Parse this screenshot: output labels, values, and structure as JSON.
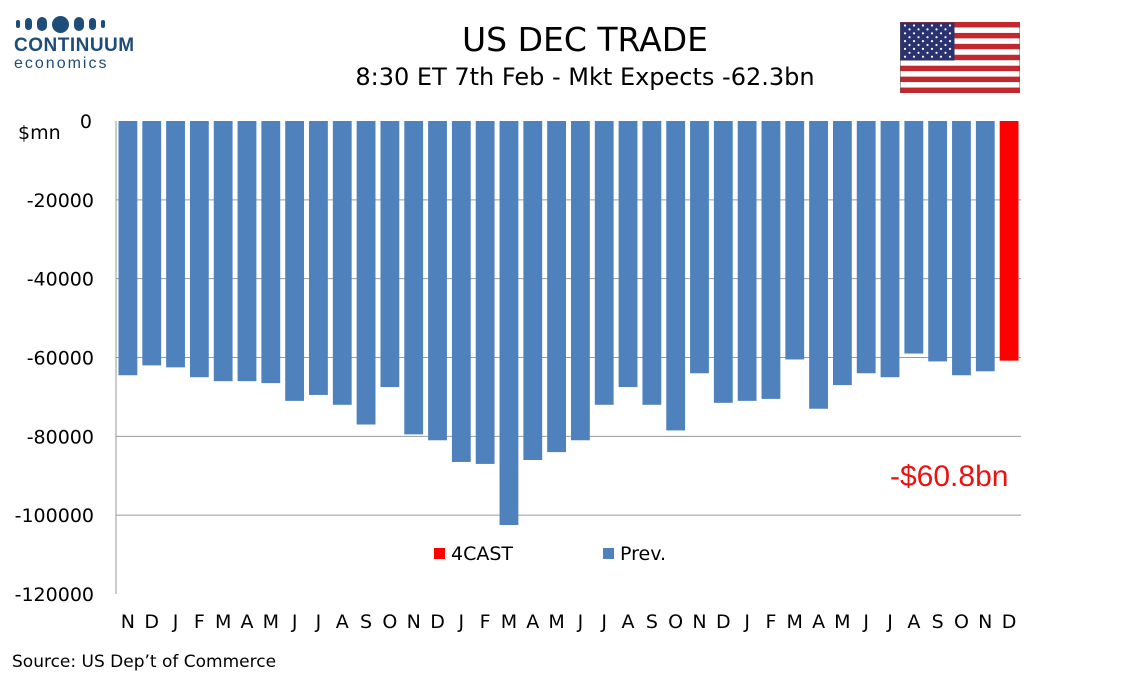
{
  "brand": {
    "name": "CONTINUUM",
    "sub": "economics"
  },
  "header": {
    "title": "US DEC TRADE",
    "subtitle": "8:30 ET 7th Feb - Mkt Expects -62.3bn"
  },
  "flag": "us-flag",
  "source": "Source: US Dep’t of Commerce",
  "callout": "-$60.8bn",
  "colors": {
    "prev": "#4f81bd",
    "forecast": "#ff0000",
    "callout": "#ee1111",
    "brand": "#1f4d7a"
  },
  "chart_data": {
    "type": "bar",
    "title": "US DEC TRADE",
    "subtitle": "8:30 ET 7th Feb - Mkt Expects -62.3bn",
    "ylabel": "$mn",
    "ylim": [
      -120000,
      0
    ],
    "yticks": [
      0,
      -20000,
      -40000,
      -60000,
      -80000,
      -100000,
      -120000
    ],
    "grid": true,
    "legend_position": "bottom-center",
    "categories": [
      "N",
      "D",
      "J",
      "F",
      "M",
      "A",
      "M",
      "J",
      "J",
      "A",
      "S",
      "O",
      "N",
      "D",
      "J",
      "F",
      "M",
      "A",
      "M",
      "J",
      "J",
      "A",
      "S",
      "O",
      "N",
      "D",
      "J",
      "F",
      "M",
      "A",
      "M",
      "J",
      "J",
      "A",
      "S",
      "O",
      "N",
      "D"
    ],
    "series": [
      {
        "name": "Prev.",
        "values": [
          -64500,
          -62000,
          -62500,
          -65000,
          -66000,
          -66000,
          -66500,
          -71000,
          -69500,
          -72000,
          -77000,
          -67500,
          -79500,
          -81000,
          -86500,
          -87000,
          -102500,
          -86000,
          -84000,
          -81000,
          -72000,
          -67500,
          -72000,
          -78500,
          -64000,
          -71500,
          -71000,
          -70500,
          -60500,
          -73000,
          -67000,
          -64000,
          -65000,
          -59000,
          -61000,
          -64500,
          -63500,
          null
        ]
      },
      {
        "name": "4CAST",
        "values": [
          null,
          null,
          null,
          null,
          null,
          null,
          null,
          null,
          null,
          null,
          null,
          null,
          null,
          null,
          null,
          null,
          null,
          null,
          null,
          null,
          null,
          null,
          null,
          null,
          null,
          null,
          null,
          null,
          null,
          null,
          null,
          null,
          null,
          null,
          null,
          null,
          null,
          -60800
        ]
      }
    ]
  }
}
